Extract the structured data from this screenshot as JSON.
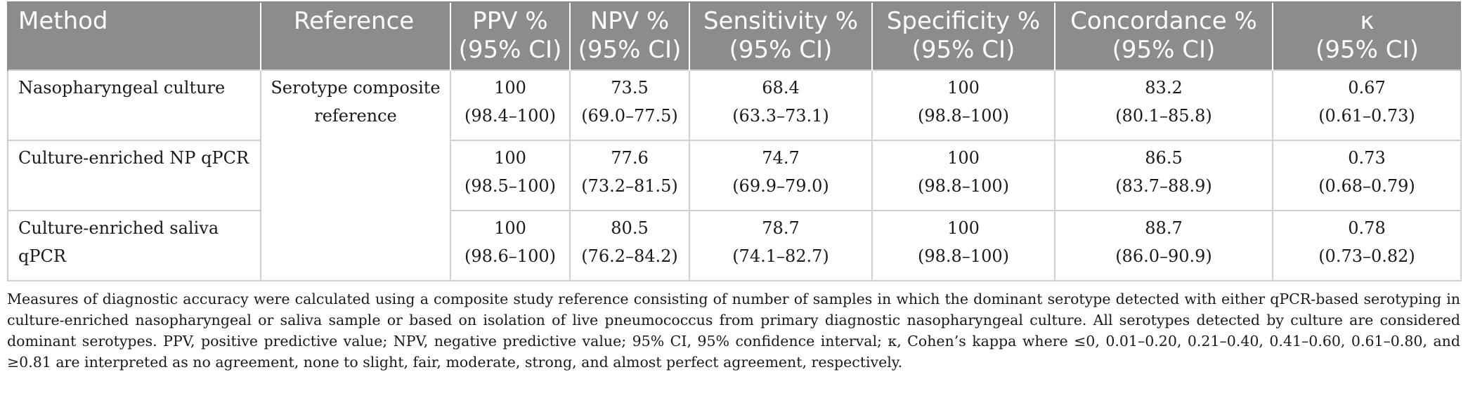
{
  "table": {
    "headers": [
      {
        "line1": "Method",
        "line2": ""
      },
      {
        "line1": "Reference",
        "line2": ""
      },
      {
        "line1": "PPV %",
        "line2": "(95% CI)"
      },
      {
        "line1": "NPV %",
        "line2": "(95% CI)"
      },
      {
        "line1": "Sensitivity %",
        "line2": "(95% CI)"
      },
      {
        "line1": "Specificity %",
        "line2": "(95% CI)"
      },
      {
        "line1": "Concordance %",
        "line2": "(95% CI)"
      },
      {
        "line1": "κ",
        "line2": "(95% CI)"
      }
    ],
    "reference": {
      "line1": "Serotype composite",
      "line2": "reference"
    },
    "rows": [
      {
        "method": {
          "line1": "Nasopharyngeal culture",
          "line2": ""
        },
        "ppv": {
          "value": "100",
          "ci": "(98.4–100)"
        },
        "npv": {
          "value": "73.5",
          "ci": "(69.0–77.5)"
        },
        "sensitivity": {
          "value": "68.4",
          "ci": "(63.3–73.1)"
        },
        "specificity": {
          "value": "100",
          "ci": "(98.8–100)"
        },
        "concordance": {
          "value": "83.2",
          "ci": "(80.1–85.8)"
        },
        "kappa": {
          "value": "0.67",
          "ci": "(0.61–0.73)"
        }
      },
      {
        "method": {
          "line1": "Culture-enriched NP qPCR",
          "line2": ""
        },
        "ppv": {
          "value": "100",
          "ci": "(98.5–100)"
        },
        "npv": {
          "value": "77.6",
          "ci": "(73.2–81.5)"
        },
        "sensitivity": {
          "value": "74.7",
          "ci": "(69.9–79.0)"
        },
        "specificity": {
          "value": "100",
          "ci": "(98.8–100)"
        },
        "concordance": {
          "value": "86.5",
          "ci": "(83.7–88.9)"
        },
        "kappa": {
          "value": "0.73",
          "ci": "(0.68–0.79)"
        }
      },
      {
        "method": {
          "line1": "Culture-enriched saliva",
          "line2": "qPCR"
        },
        "ppv": {
          "value": "100",
          "ci": "(98.6–100)"
        },
        "npv": {
          "value": "80.5",
          "ci": "(76.2–84.2)"
        },
        "sensitivity": {
          "value": "78.7",
          "ci": "(74.1–82.7)"
        },
        "specificity": {
          "value": "100",
          "ci": "(98.8–100)"
        },
        "concordance": {
          "value": "88.7",
          "ci": "(86.0–90.9)"
        },
        "kappa": {
          "value": "0.78",
          "ci": "(0.73–0.82)"
        }
      }
    ]
  },
  "footnote": "Measures of diagnostic accuracy were calculated using a composite study reference consisting of number of samples in which the dominant serotype detected with either qPCR-based serotyping in culture-enriched nasopharyngeal or saliva sample or based on isolation of live pneumococcus from primary diagnostic nasopharyngeal culture. All serotypes detected by culture are considered dominant serotypes. PPV, positive predictive value; NPV, negative predictive value; 95% CI, 95% confidence interval; κ, Cohen’s kappa where ≤0, 0.01–0.20, 0.21–0.40, 0.41–0.60, 0.61–0.80, and ≥0.81 are interpreted as no agreement, none to slight, fair, moderate, strong, and almost perfect agreement, respectively."
}
